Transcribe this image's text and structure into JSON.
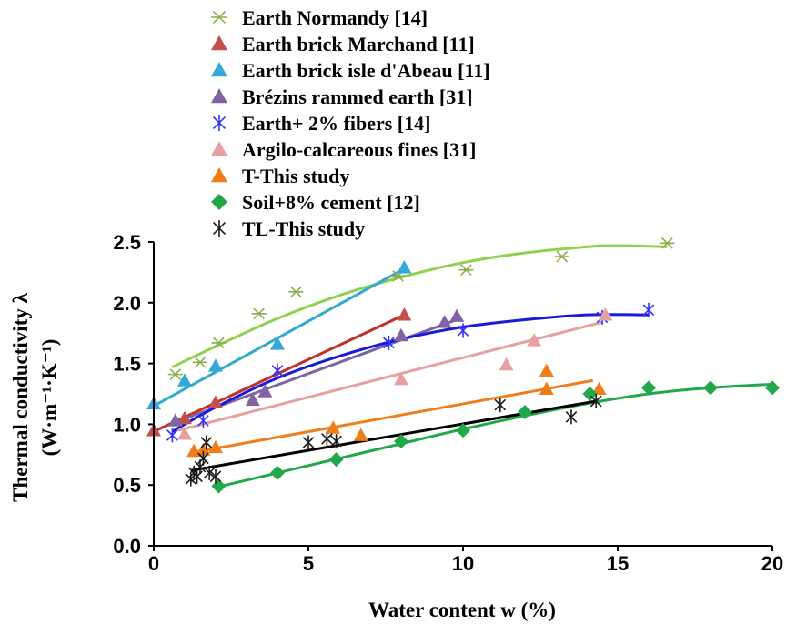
{
  "chart_data": {
    "type": "scatter",
    "xlabel": "Water content w (%)",
    "ylabel": "Thermal conductivity λ",
    "ylabel_units": "(W·m⁻¹·K⁻¹)",
    "xlim": [
      0,
      20
    ],
    "ylim": [
      0,
      2.5
    ],
    "x_ticks": [
      "0",
      "5",
      "10",
      "15",
      "20"
    ],
    "y_ticks": [
      "0.0",
      "0.5",
      "1.0",
      "1.5",
      "2.0",
      "2.5"
    ],
    "grid": false,
    "legend_position": "top",
    "series": [
      {
        "name": "Earth Normandy [14]",
        "marker": "asterisk-x",
        "color": "#8aae4a",
        "points": [
          [
            0.7,
            1.41
          ],
          [
            1.5,
            1.51
          ],
          [
            2.1,
            1.67
          ],
          [
            3.4,
            1.91
          ],
          [
            4.6,
            2.09
          ],
          [
            7.9,
            2.22
          ],
          [
            10.1,
            2.27
          ],
          [
            13.2,
            2.38
          ],
          [
            16.6,
            2.49
          ]
        ],
        "fit": {
          "color": "#8fd14f",
          "points": [
            [
              0.6,
              1.47
            ],
            [
              2,
              1.64
            ],
            [
              4,
              1.87
            ],
            [
              6,
              2.06
            ],
            [
              8,
              2.21
            ],
            [
              10,
              2.33
            ],
            [
              12,
              2.41
            ],
            [
              14,
              2.46
            ],
            [
              15,
              2.47
            ],
            [
              16.6,
              2.46
            ]
          ]
        }
      },
      {
        "name": "Earth brick Marchand [11]",
        "marker": "triangle",
        "color": "#c0504d",
        "points": [
          [
            0,
            0.95
          ],
          [
            1,
            1.05
          ],
          [
            2,
            1.18
          ],
          [
            8.1,
            1.9
          ]
        ],
        "fit": {
          "color": "#c0302a",
          "points": [
            [
              0,
              0.94
            ],
            [
              8.1,
              1.9
            ]
          ]
        }
      },
      {
        "name": "Earth brick isle d'Abeau [11]",
        "marker": "triangle",
        "color": "#35a8d8",
        "points": [
          [
            0,
            1.17
          ],
          [
            1,
            1.36
          ],
          [
            2,
            1.48
          ],
          [
            4,
            1.66
          ],
          [
            8.1,
            2.29
          ]
        ],
        "fit": {
          "color": "#31a9cf",
          "points": [
            [
              0,
              1.15
            ],
            [
              8.1,
              2.28
            ]
          ]
        }
      },
      {
        "name": "Brézins rammed earth [31]",
        "marker": "triangle",
        "color": "#8064a2",
        "points": [
          [
            0.7,
            1.03
          ],
          [
            3.2,
            1.2
          ],
          [
            3.6,
            1.27
          ],
          [
            8,
            1.73
          ],
          [
            9.4,
            1.84
          ],
          [
            9.8,
            1.89
          ]
        ],
        "fit": {
          "color": "#8064a2",
          "points": [
            [
              0.5,
              1.0
            ],
            [
              9.9,
              1.87
            ]
          ]
        }
      },
      {
        "name": "Earth+ 2% fibers [14]",
        "marker": "asterisk",
        "color": "#3030ff",
        "points": [
          [
            0.6,
            0.91
          ],
          [
            1.6,
            1.03
          ],
          [
            4.0,
            1.44
          ],
          [
            7.6,
            1.67
          ],
          [
            10.0,
            1.77
          ],
          [
            14.5,
            1.88
          ],
          [
            16.0,
            1.94
          ]
        ],
        "fit": {
          "color": "#1a1ad9",
          "points": [
            [
              0.6,
              0.94
            ],
            [
              2,
              1.14
            ],
            [
              4,
              1.38
            ],
            [
              6,
              1.56
            ],
            [
              8,
              1.7
            ],
            [
              10,
              1.8
            ],
            [
              12,
              1.86
            ],
            [
              14,
              1.9
            ],
            [
              16,
              1.9
            ]
          ]
        }
      },
      {
        "name": "Argilo-calcareous fines [31]",
        "marker": "triangle",
        "color": "#e6a0a2",
        "points": [
          [
            1,
            0.92
          ],
          [
            8,
            1.37
          ],
          [
            11.4,
            1.49
          ],
          [
            12.3,
            1.69
          ],
          [
            14.6,
            1.9
          ]
        ],
        "fit": {
          "color": "#e6a0a2",
          "points": [
            [
              0.8,
              0.95
            ],
            [
              14.5,
              1.84
            ]
          ]
        }
      },
      {
        "name": "T-This study",
        "marker": "triangle",
        "color": "#f07d1a",
        "points": [
          [
            1.3,
            0.78
          ],
          [
            1.6,
            0.79
          ],
          [
            2.0,
            0.81
          ],
          [
            5.8,
            0.97
          ],
          [
            6.7,
            0.91
          ],
          [
            12.7,
            1.44
          ],
          [
            12.7,
            1.29
          ],
          [
            14.4,
            1.29
          ]
        ],
        "fit": {
          "color": "#f07d1a",
          "points": [
            [
              1.3,
              0.77
            ],
            [
              14.2,
              1.36
            ]
          ]
        }
      },
      {
        "name": "Soil+8% cement [12]",
        "marker": "diamond",
        "color": "#22a84a",
        "points": [
          [
            2.1,
            0.49
          ],
          [
            4.0,
            0.6
          ],
          [
            5.9,
            0.71
          ],
          [
            8.0,
            0.86
          ],
          [
            10.0,
            0.95
          ],
          [
            12.0,
            1.1
          ],
          [
            14.1,
            1.25
          ],
          [
            16.0,
            1.3
          ],
          [
            18.0,
            1.3
          ],
          [
            20.0,
            1.3
          ]
        ],
        "fit": {
          "color": "#22a84a",
          "points": [
            [
              2,
              0.48
            ],
            [
              4,
              0.6
            ],
            [
              6,
              0.72
            ],
            [
              8,
              0.84
            ],
            [
              10,
              0.96
            ],
            [
              12,
              1.07
            ],
            [
              14,
              1.17
            ],
            [
              16,
              1.25
            ],
            [
              18,
              1.3
            ],
            [
              20,
              1.33
            ]
          ]
        }
      },
      {
        "name": "TL-This study",
        "marker": "asterisk",
        "color": "#1a1a1a",
        "points": [
          [
            1.2,
            0.55
          ],
          [
            1.3,
            0.6
          ],
          [
            1.4,
            0.57
          ],
          [
            1.5,
            0.65
          ],
          [
            1.6,
            0.72
          ],
          [
            1.7,
            0.85
          ],
          [
            1.8,
            0.6
          ],
          [
            2.0,
            0.57
          ],
          [
            5.0,
            0.85
          ],
          [
            5.6,
            0.88
          ],
          [
            5.9,
            0.86
          ],
          [
            11.2,
            1.16
          ],
          [
            13.5,
            1.06
          ],
          [
            14.3,
            1.19
          ]
        ],
        "fit": {
          "color": "#000000",
          "points": [
            [
              1.2,
              0.62
            ],
            [
              14.3,
              1.19
            ]
          ]
        }
      }
    ]
  }
}
